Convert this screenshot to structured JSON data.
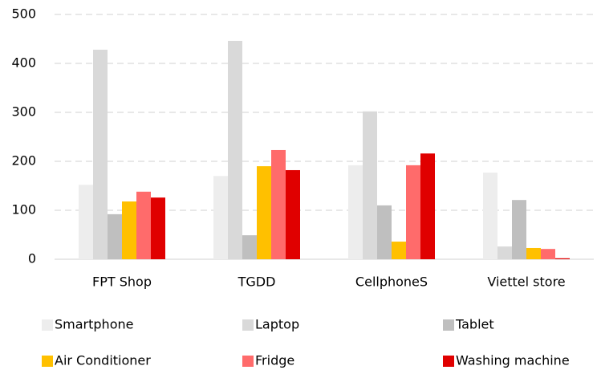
{
  "chart_data": {
    "type": "bar",
    "categories": [
      "FPT Shop",
      "TGDD",
      "CellphoneS",
      "Viettel store"
    ],
    "series": [
      {
        "name": "Smartphone",
        "color": "#ededed",
        "values": [
          152,
          170,
          192,
          177
        ]
      },
      {
        "name": "Laptop",
        "color": "#d9d9d9",
        "values": [
          428,
          446,
          302,
          26
        ]
      },
      {
        "name": "Tablet",
        "color": "#bfbfbf",
        "values": [
          92,
          49,
          110,
          121
        ]
      },
      {
        "name": "Air Conditioner",
        "color": "#ffc000",
        "values": [
          118,
          190,
          36,
          23
        ]
      },
      {
        "name": "Fridge",
        "color": "#ff6b6b",
        "values": [
          138,
          223,
          192,
          21
        ]
      },
      {
        "name": "Washing machine",
        "color": "#e00000",
        "values": [
          126,
          182,
          216,
          2
        ]
      }
    ],
    "ylim": [
      0,
      500
    ],
    "yticks": [
      0,
      100,
      200,
      300,
      400,
      500
    ],
    "grid": true,
    "legend": "bottom"
  }
}
